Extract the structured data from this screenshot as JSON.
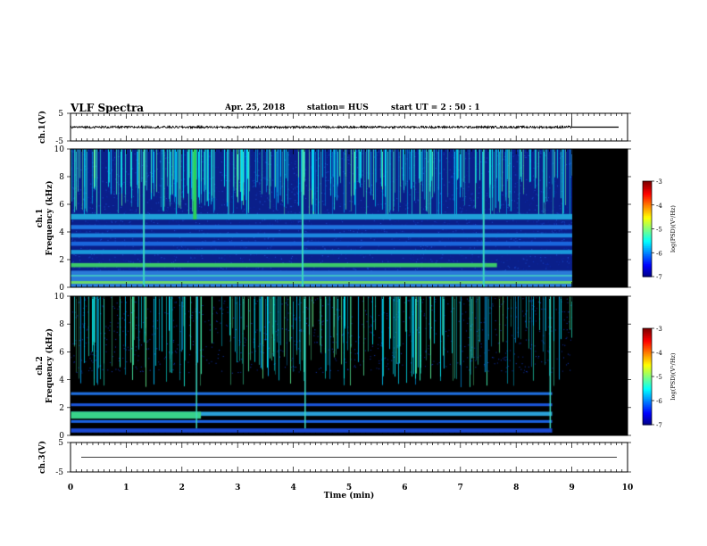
{
  "header": {
    "title": "VLF Spectra",
    "date": "Apr. 25, 2018",
    "station": "station= HUS",
    "start": "start  UT  =   2 : 50 : 1"
  },
  "chart_data": [
    {
      "type": "line",
      "ylabel": "ch.1(V)",
      "ylim": [
        -5,
        5
      ],
      "yticks": [
        "5",
        "-5"
      ],
      "xlim": [
        0,
        10
      ],
      "data_end_min": 9.0,
      "series": [
        {
          "level": 0,
          "noise_amplitude": 0.4,
          "after_end_level": 0
        }
      ]
    },
    {
      "type": "heatmap",
      "ylabel": "ch.1 Frequency (kHz)",
      "ylim": [
        0,
        10
      ],
      "yticks": [
        "0",
        "2",
        "4",
        "6",
        "8",
        "10"
      ],
      "xlim": [
        0,
        10
      ],
      "data_end_min": 9.0,
      "colorbar": {
        "label": "log(PSD)(V²/Hz)",
        "range": [
          -7,
          -3
        ],
        "ticks": [
          "-3",
          "-4",
          "-5",
          "-6",
          "-7"
        ]
      },
      "bands_khz": [
        4.9,
        4.2,
        3.6,
        3.0,
        2.4,
        1.6,
        0.3
      ],
      "background": "#0a1f8a"
    },
    {
      "type": "heatmap",
      "ylabel": "ch.2 Frequency (kHz)",
      "ylim": [
        0,
        10
      ],
      "yticks": [
        "0",
        "2",
        "4",
        "6",
        "8",
        "10"
      ],
      "xlim": [
        0,
        10
      ],
      "data_end_min": 9.0,
      "colorbar": {
        "label": "log(PSD)(V²/Hz)",
        "range": [
          -7,
          -3
        ],
        "ticks": [
          "-3",
          "-4",
          "-5",
          "-6",
          "-7"
        ]
      },
      "bands_khz": [
        3.0,
        2.2,
        1.5,
        1.0,
        0.3
      ],
      "background": "#000000"
    },
    {
      "type": "line",
      "ylabel": "ch.3(V)",
      "ylim": [
        -5,
        5
      ],
      "yticks": [
        "5",
        "-5"
      ],
      "xlim": [
        0,
        10
      ],
      "series": [
        {
          "level": 0
        }
      ]
    }
  ],
  "xaxis": {
    "label": "Time  (min)",
    "ticks": [
      "0",
      "1",
      "2",
      "3",
      "4",
      "5",
      "6",
      "7",
      "8",
      "9",
      "10"
    ]
  }
}
